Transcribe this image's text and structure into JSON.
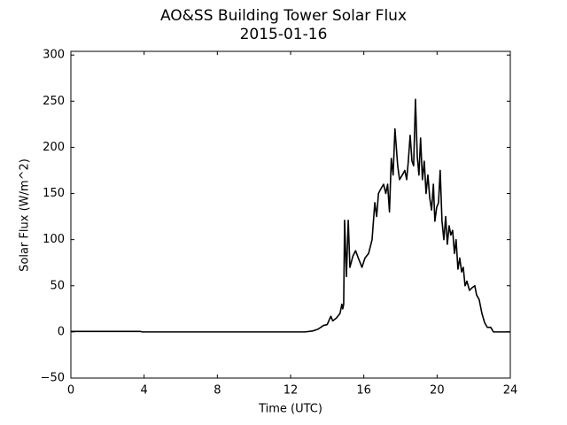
{
  "chart_data": {
    "type": "line",
    "title": "AO&SS Building Tower Solar Flux",
    "subtitle": "2015-01-16",
    "x_label": "Time (UTC)",
    "y_label": "Solar Flux (W/m^2)",
    "color": "#000000",
    "x": [
      0,
      3.8,
      3.9,
      12.8,
      13.2,
      13.5,
      13.8,
      14.0,
      14.2,
      14.3,
      14.5,
      14.7,
      14.8,
      14.85,
      14.9,
      14.95,
      15.05,
      15.15,
      15.24,
      15.4,
      15.55,
      15.7,
      15.9,
      16.06,
      16.26,
      16.45,
      16.6,
      16.7,
      16.8,
      16.93,
      17.08,
      17.2,
      17.3,
      17.4,
      17.5,
      17.6,
      17.7,
      17.85,
      17.95,
      18.1,
      18.24,
      18.34,
      18.43,
      18.53,
      18.63,
      18.72,
      18.82,
      18.92,
      19.01,
      19.1,
      19.2,
      19.3,
      19.4,
      19.5,
      19.6,
      19.7,
      19.8,
      19.88,
      19.98,
      20.08,
      20.17,
      20.27,
      20.37,
      20.47,
      20.56,
      20.66,
      20.75,
      20.85,
      20.95,
      21.04,
      21.14,
      21.24,
      21.34,
      21.43,
      21.53,
      21.63,
      21.77,
      21.92,
      22.06,
      22.16,
      22.3,
      22.45,
      22.6,
      22.74,
      22.93,
      23.08,
      24
    ],
    "values": [
      0.5,
      0.5,
      0,
      0,
      1,
      3,
      7,
      8,
      17,
      12,
      15,
      20,
      30,
      25,
      30,
      121,
      60,
      121,
      70,
      82,
      88,
      80,
      70,
      80,
      85,
      100,
      140,
      125,
      150,
      155,
      160,
      150,
      160,
      130,
      188,
      170,
      220,
      180,
      165,
      170,
      175,
      165,
      185,
      213,
      185,
      180,
      252,
      190,
      170,
      210,
      165,
      185,
      150,
      170,
      145,
      132,
      160,
      120,
      135,
      140,
      175,
      120,
      100,
      125,
      95,
      115,
      105,
      110,
      85,
      100,
      68,
      80,
      65,
      70,
      50,
      55,
      45,
      48,
      50,
      40,
      35,
      20,
      10,
      5,
      5,
      0,
      0
    ],
    "xlim": [
      0,
      24
    ],
    "xticks": [
      0,
      4,
      8,
      12,
      16,
      20,
      24
    ],
    "ylim": [
      -50,
      304
    ],
    "yticks": [
      {
        "value": -50,
        "label": "−50"
      },
      0,
      50,
      100,
      150,
      200,
      250,
      300
    ],
    "grid": false
  }
}
